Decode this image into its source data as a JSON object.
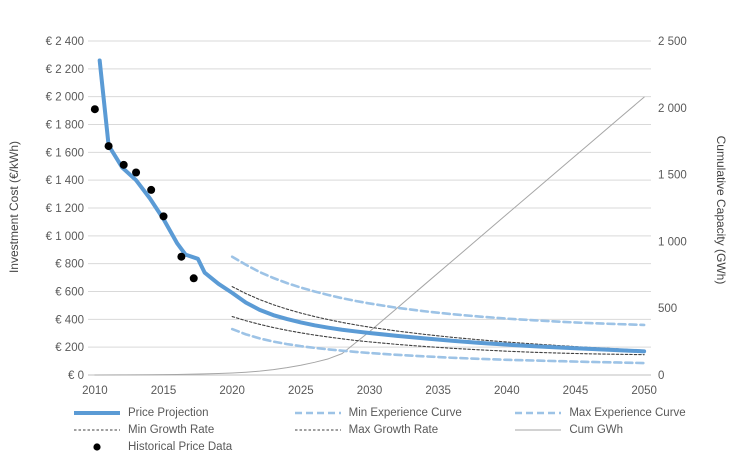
{
  "colors": {
    "primary_blue": "#5B9BD5",
    "light_blue": "#9DC3E6",
    "dark_dotted": "#404040",
    "gray_line": "#A6A6A6",
    "black_dot": "#000000",
    "gridline": "#D9D9D9",
    "zero_line": "#BFBFBF",
    "axis_text": "#595959"
  },
  "chart_data": {
    "type": "line",
    "title": "",
    "x_axis": {
      "range": [
        2009.5,
        2050.5
      ],
      "ticks": [
        2010,
        2015,
        2020,
        2025,
        2030,
        2035,
        2040,
        2045,
        2050
      ],
      "grid": false
    },
    "y_left": {
      "label": "Investment Cost (€/kWh)",
      "range": [
        0,
        2400
      ],
      "tick_values": [
        2400,
        2200,
        2000,
        1800,
        1600,
        1400,
        1200,
        1000,
        800,
        600,
        400,
        200,
        0
      ],
      "tick_labels": [
        "€ 2 400",
        "€ 2 200",
        "€ 2 000",
        "€ 1 800",
        "€ 1 600",
        "€ 1 400",
        "€ 1 200",
        "€ 1 000",
        "€ 800",
        "€ 600",
        "€ 400",
        "€ 200",
        "€ 0"
      ],
      "grid": true
    },
    "y_right": {
      "label": "Cumulative Capacity (GWh)",
      "range": [
        0,
        2500
      ],
      "tick_values": [
        2500,
        2000,
        1500,
        1000,
        500,
        0
      ],
      "tick_labels": [
        "2 500",
        "2 000",
        "1 500",
        "1 000",
        "500",
        "0"
      ],
      "grid": false
    },
    "series": [
      {
        "name": "Cum GWh",
        "style": "cum",
        "axis": "right",
        "kind": "line",
        "points": [
          [
            2010,
            0
          ],
          [
            2012,
            1
          ],
          [
            2014,
            2
          ],
          [
            2016,
            4
          ],
          [
            2018,
            8
          ],
          [
            2019,
            11
          ],
          [
            2020,
            15
          ],
          [
            2021,
            21
          ],
          [
            2022,
            29
          ],
          [
            2023,
            40
          ],
          [
            2024,
            55
          ],
          [
            2025,
            73
          ],
          [
            2026,
            95
          ],
          [
            2027,
            121
          ],
          [
            2028,
            160
          ],
          [
            2029,
            242
          ],
          [
            2030,
            325
          ],
          [
            2032,
            500
          ],
          [
            2034,
            676
          ],
          [
            2036,
            851
          ],
          [
            2038,
            1027
          ],
          [
            2040,
            1203
          ],
          [
            2042,
            1378
          ],
          [
            2044,
            1554
          ],
          [
            2046,
            1729
          ],
          [
            2048,
            1905
          ],
          [
            2050,
            2080
          ]
        ]
      },
      {
        "name": "Max Experience Curve",
        "style": "exp",
        "axis": "left",
        "kind": "line",
        "points": [
          [
            2020,
            850
          ],
          [
            2021,
            792
          ],
          [
            2022,
            740
          ],
          [
            2023,
            697
          ],
          [
            2024,
            660
          ],
          [
            2025,
            628
          ],
          [
            2026,
            600
          ],
          [
            2027,
            575
          ],
          [
            2028,
            552
          ],
          [
            2029,
            532
          ],
          [
            2030,
            514
          ],
          [
            2032,
            483
          ],
          [
            2034,
            458
          ],
          [
            2036,
            437
          ],
          [
            2038,
            420
          ],
          [
            2040,
            405
          ],
          [
            2042,
            393
          ],
          [
            2044,
            382
          ],
          [
            2046,
            373
          ],
          [
            2048,
            366
          ],
          [
            2050,
            360
          ]
        ]
      },
      {
        "name": "Min Experience Curve",
        "style": "exp",
        "axis": "left",
        "kind": "line",
        "points": [
          [
            2020,
            330
          ],
          [
            2021,
            292
          ],
          [
            2022,
            263
          ],
          [
            2023,
            240
          ],
          [
            2024,
            222
          ],
          [
            2025,
            207
          ],
          [
            2026,
            195
          ],
          [
            2027,
            184
          ],
          [
            2028,
            175
          ],
          [
            2029,
            166
          ],
          [
            2030,
            158
          ],
          [
            2032,
            145
          ],
          [
            2034,
            134
          ],
          [
            2036,
            124
          ],
          [
            2038,
            116
          ],
          [
            2040,
            109
          ],
          [
            2042,
            104
          ],
          [
            2044,
            99
          ],
          [
            2046,
            94
          ],
          [
            2048,
            90
          ],
          [
            2050,
            86
          ]
        ]
      },
      {
        "name": "Min Growth Rate",
        "style": "growth",
        "axis": "left",
        "kind": "line",
        "points": [
          [
            2020,
            635
          ],
          [
            2021,
            585
          ],
          [
            2022,
            542
          ],
          [
            2023,
            505
          ],
          [
            2024,
            473
          ],
          [
            2025,
            445
          ],
          [
            2026,
            420
          ],
          [
            2027,
            398
          ],
          [
            2028,
            378
          ],
          [
            2029,
            360
          ],
          [
            2030,
            344
          ],
          [
            2032,
            316
          ],
          [
            2034,
            292
          ],
          [
            2036,
            271
          ],
          [
            2038,
            253
          ],
          [
            2040,
            237
          ],
          [
            2042,
            223
          ],
          [
            2044,
            210
          ],
          [
            2046,
            198
          ],
          [
            2048,
            188
          ],
          [
            2050,
            178
          ]
        ]
      },
      {
        "name": "Max Growth Rate",
        "style": "growth",
        "axis": "left",
        "kind": "line",
        "points": [
          [
            2020,
            420
          ],
          [
            2021,
            390
          ],
          [
            2022,
            364
          ],
          [
            2023,
            341
          ],
          [
            2024,
            321
          ],
          [
            2025,
            303
          ],
          [
            2026,
            287
          ],
          [
            2027,
            273
          ],
          [
            2028,
            260
          ],
          [
            2029,
            248
          ],
          [
            2030,
            238
          ],
          [
            2032,
            220
          ],
          [
            2034,
            205
          ],
          [
            2036,
            192
          ],
          [
            2038,
            181
          ],
          [
            2040,
            171
          ],
          [
            2042,
            163
          ],
          [
            2044,
            157
          ],
          [
            2046,
            152
          ],
          [
            2048,
            149
          ],
          [
            2050,
            146
          ]
        ]
      },
      {
        "name": "Price Projection",
        "style": "price",
        "axis": "left",
        "kind": "line",
        "points": [
          [
            2010.35,
            2260
          ],
          [
            2011,
            1650
          ],
          [
            2012,
            1490
          ],
          [
            2013,
            1400
          ],
          [
            2014,
            1270
          ],
          [
            2015,
            1120
          ],
          [
            2016,
            945
          ],
          [
            2016.6,
            865
          ],
          [
            2017.5,
            835
          ],
          [
            2018,
            735
          ],
          [
            2019,
            655
          ],
          [
            2020,
            590
          ],
          [
            2021,
            520
          ],
          [
            2022,
            468
          ],
          [
            2023,
            430
          ],
          [
            2024,
            402
          ],
          [
            2025,
            378
          ],
          [
            2026,
            357
          ],
          [
            2027,
            340
          ],
          [
            2028,
            325
          ],
          [
            2029,
            313
          ],
          [
            2030,
            302
          ],
          [
            2032,
            281
          ],
          [
            2034,
            263
          ],
          [
            2036,
            246
          ],
          [
            2038,
            231
          ],
          [
            2040,
            218
          ],
          [
            2042,
            207
          ],
          [
            2044,
            197
          ],
          [
            2046,
            188
          ],
          [
            2048,
            179
          ],
          [
            2050,
            170
          ]
        ]
      },
      {
        "name": "Historical Price Data",
        "style": "dot",
        "axis": "left",
        "kind": "scatter",
        "points": [
          [
            2010,
            1910
          ],
          [
            2011,
            1645
          ],
          [
            2012.1,
            1510
          ],
          [
            2013,
            1455
          ],
          [
            2014.1,
            1330
          ],
          [
            2015,
            1140
          ],
          [
            2016.3,
            850
          ],
          [
            2017.2,
            695
          ]
        ]
      }
    ],
    "legend": {
      "position": "bottom",
      "rows": [
        [
          {
            "label": "Price Projection",
            "style": "price"
          },
          {
            "label": "Min Experience Curve",
            "style": "exp"
          },
          {
            "label": "Max Experience Curve",
            "style": "exp"
          }
        ],
        [
          {
            "label": "Min Growth Rate",
            "style": "growth"
          },
          {
            "label": "Max Growth Rate",
            "style": "growth"
          },
          {
            "label": "Cum GWh",
            "style": "cum"
          }
        ],
        [
          {
            "label": "Historical Price Data",
            "style": "dot"
          }
        ]
      ]
    }
  }
}
